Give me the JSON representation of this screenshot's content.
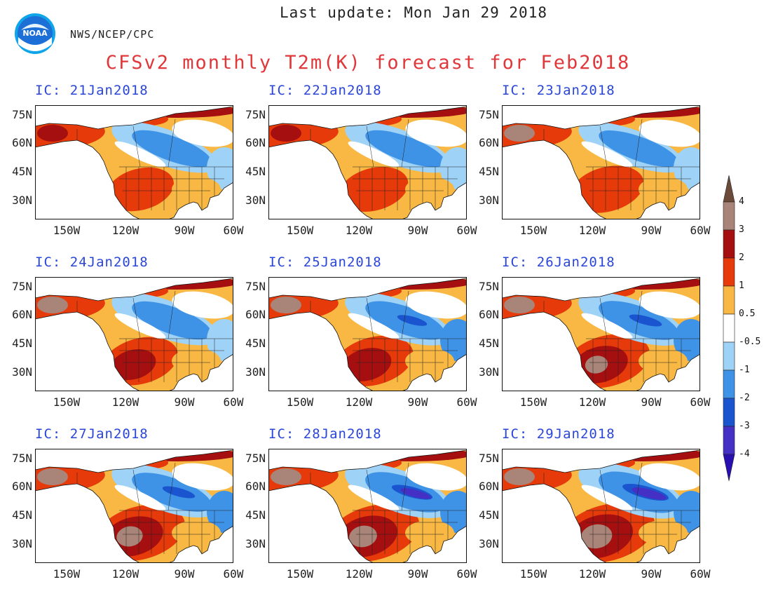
{
  "header": {
    "last_update": "Last update: Mon Jan 29 2018",
    "org": "NWS/NCEP/CPC",
    "title": "CFSv2 monthly T2m(K) forecast for Feb2018",
    "logo_text": "NOAA"
  },
  "axes": {
    "lat_labels": [
      "75N",
      "60N",
      "45N",
      "30N"
    ],
    "lon_labels": [
      "150W",
      "120W",
      "90W",
      "60W"
    ]
  },
  "panels": [
    {
      "ic": "IC: 21Jan2018"
    },
    {
      "ic": "IC: 22Jan2018"
    },
    {
      "ic": "IC: 23Jan2018"
    },
    {
      "ic": "IC: 24Jan2018"
    },
    {
      "ic": "IC: 25Jan2018"
    },
    {
      "ic": "IC: 26Jan2018"
    },
    {
      "ic": "IC: 27Jan2018"
    },
    {
      "ic": "IC: 28Jan2018"
    },
    {
      "ic": "IC: 29Jan2018"
    }
  ],
  "colorbar": {
    "labels": [
      "4",
      "3",
      "2",
      "1",
      "0.5",
      "-0.5",
      "-1",
      "-2",
      "-3",
      "-4"
    ],
    "colors": [
      "#6b4a3a",
      "#a98478",
      "#a50f0f",
      "#e63a0a",
      "#f8b843",
      "#ffffff",
      "#9fd2f7",
      "#3f93e7",
      "#1a55cf",
      "#4430c4",
      "#2a0fb0"
    ]
  }
}
